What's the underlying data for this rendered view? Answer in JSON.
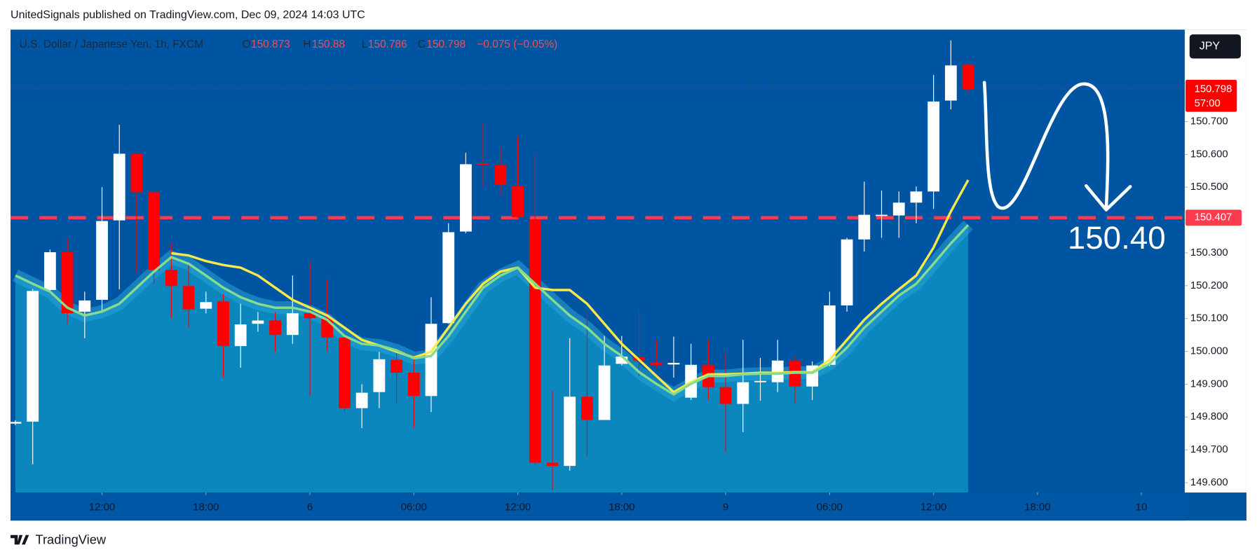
{
  "header": {
    "publisher": "UnitedSignals published on TradingView.com, Dec 09, 2024 14:03 UTC"
  },
  "footer": {
    "brand": "TradingView"
  },
  "chart_data": {
    "type": "candlestick",
    "title": "U.S. Dollar / Japanese Yen, 1h, FXCM",
    "ohlc_letters": [
      "O",
      "H",
      "L",
      "C"
    ],
    "change": "−0.075 (−0.05%)",
    "currency": "JPY",
    "countdown": "57:00",
    "annotation": "150.40",
    "up_color": "#ffffff",
    "down_color": "#ff0000",
    "open": [
      149.78,
      149.786,
      150.187,
      150.302,
      150.121,
      150.157,
      150.399,
      150.602,
      150.485,
      150.248,
      150.199,
      150.13,
      150.152,
      150.016,
      150.084,
      150.094,
      150.05,
      150.116,
      150.101,
      150.042,
      149.827,
      149.876,
      149.974,
      149.935,
      149.864,
      150.086,
      150.365,
      150.573,
      150.568,
      150.504,
      150.402,
      149.661,
      149.651,
      149.862,
      149.791,
      149.962,
      149.984,
      149.967,
      149.96,
      149.859,
      149.959,
      149.891,
      149.84,
      149.906,
      149.906,
      149.972,
      149.893,
      149.959,
      150.14,
      150.341,
      150.414,
      150.414,
      150.453,
      150.487,
      150.764,
      150.873
    ],
    "high": [
      149.79,
      150.19,
      150.31,
      150.346,
      150.182,
      150.5,
      150.69,
      150.605,
      150.49,
      150.328,
      150.267,
      150.182,
      150.174,
      150.145,
      150.12,
      150.12,
      150.231,
      150.272,
      150.218,
      150.047,
      149.9,
      149.998,
      149.998,
      149.986,
      150.165,
      150.39,
      150.605,
      150.695,
      150.622,
      150.654,
      150.605,
      149.881,
      150.04,
      150.121,
      150.047,
      150.047,
      150.126,
      150.035,
      150.045,
      150.023,
      150.035,
      149.998,
      150.035,
      149.98,
      150.035,
      149.986,
      149.969,
      150.182,
      150.346,
      150.517,
      150.49,
      150.487,
      150.502,
      150.842,
      150.947,
      150.88
    ],
    "low": [
      149.775,
      149.656,
      150.18,
      150.084,
      150.04,
      150.121,
      150.189,
      150.24,
      150.206,
      150.101,
      150.072,
      150.116,
      149.92,
      149.95,
      150.06,
      149.998,
      150.023,
      149.864,
      149.998,
      149.815,
      149.766,
      149.827,
      149.84,
      149.766,
      149.815,
      150.084,
      150.36,
      150.5,
      150.475,
      150.402,
      149.656,
      149.578,
      149.637,
      149.681,
      149.791,
      149.957,
      149.925,
      149.95,
      149.92,
      149.852,
      149.852,
      149.693,
      149.754,
      149.85,
      149.876,
      149.84,
      149.852,
      149.955,
      150.121,
      150.304,
      150.346,
      150.346,
      150.39,
      150.434,
      150.737,
      150.786
    ],
    "close": [
      149.785,
      150.184,
      150.302,
      150.116,
      150.155,
      150.397,
      150.602,
      150.485,
      150.248,
      150.199,
      150.128,
      150.15,
      150.016,
      150.082,
      150.094,
      150.05,
      150.116,
      150.101,
      150.042,
      149.827,
      149.874,
      149.976,
      149.935,
      149.864,
      150.084,
      150.363,
      150.57,
      150.568,
      150.507,
      150.409,
      149.661,
      149.651,
      149.862,
      149.791,
      149.957,
      149.984,
      149.972,
      149.959,
      149.965,
      149.959,
      149.891,
      149.84,
      149.906,
      149.91,
      149.972,
      149.893,
      149.957,
      150.14,
      150.341,
      150.416,
      150.416,
      150.453,
      150.487,
      150.761,
      150.871,
      150.798
    ],
    "lines": [
      {
        "color": "#f5ea4a",
        "values": [
          null,
          null,
          null,
          null,
          null,
          null,
          null,
          null,
          null,
          150.299,
          150.292,
          150.275,
          150.263,
          150.255,
          150.231,
          150.194,
          150.157,
          150.133,
          150.109,
          150.072,
          150.035,
          150.018,
          149.999,
          149.981,
          149.999,
          150.072,
          150.145,
          150.206,
          150.243,
          150.255,
          150.194,
          150.187,
          150.187,
          150.145,
          150.084,
          150.023,
          149.974,
          149.925,
          149.876,
          149.906,
          149.93,
          149.93,
          149.932,
          149.935,
          149.935,
          149.937,
          149.937,
          149.974,
          150.035,
          150.096,
          150.145,
          150.189,
          150.231,
          150.316,
          150.426,
          150.522
        ]
      },
      {
        "color": "#86dc8c",
        "area_color": "#0b87bd",
        "values": [
          150.231,
          150.206,
          150.182,
          150.133,
          150.109,
          150.121,
          150.145,
          150.194,
          150.243,
          150.287,
          150.267,
          150.231,
          150.194,
          150.165,
          150.145,
          150.133,
          150.133,
          150.121,
          150.096,
          150.047,
          150.023,
          150.018,
          150.003,
          149.979,
          149.986,
          150.047,
          150.121,
          150.194,
          150.231,
          150.255,
          150.206,
          150.157,
          150.109,
          150.072,
          150.023,
          149.986,
          149.937,
          149.901,
          149.869,
          149.901,
          149.925,
          149.925,
          149.93,
          149.932,
          149.932,
          149.935,
          149.935,
          149.962,
          150.011,
          150.072,
          150.121,
          150.17,
          150.206,
          150.267,
          150.329,
          150.385
        ]
      }
    ],
    "hline": {
      "value": 150.407,
      "color": "#ff3b4e"
    },
    "xlim": [
      -0.28,
      67.5
    ],
    "xticks": [
      {
        "value": 5,
        "label": "12:00"
      },
      {
        "value": 11,
        "label": "18:00"
      },
      {
        "value": 17,
        "label": "6"
      },
      {
        "value": 23,
        "label": "06:00"
      },
      {
        "value": 29,
        "label": "12:00"
      },
      {
        "value": 35,
        "label": "18:00"
      },
      {
        "value": 41,
        "label": "9"
      },
      {
        "value": 47,
        "label": "06:00"
      },
      {
        "value": 53,
        "label": "12:00"
      },
      {
        "value": 59,
        "label": "18:00"
      },
      {
        "value": 65,
        "label": "10"
      }
    ],
    "ylim": [
      149.57,
      150.98
    ],
    "yticks": [
      {
        "value": 149.6,
        "label": "149.600"
      },
      {
        "value": 149.7,
        "label": "149.700"
      },
      {
        "value": 149.8,
        "label": "149.800"
      },
      {
        "value": 149.9,
        "label": "149.900"
      },
      {
        "value": 150.0,
        "label": "150.000"
      },
      {
        "value": 150.1,
        "label": "150.100"
      },
      {
        "value": 150.2,
        "label": "150.200"
      },
      {
        "value": 150.3,
        "label": "150.300"
      },
      {
        "value": 150.4,
        "label": "150.400"
      },
      {
        "value": 150.5,
        "label": "150.500"
      },
      {
        "value": 150.6,
        "label": "150.600"
      },
      {
        "value": 150.7,
        "label": "150.700"
      }
    ],
    "grid": false
  }
}
